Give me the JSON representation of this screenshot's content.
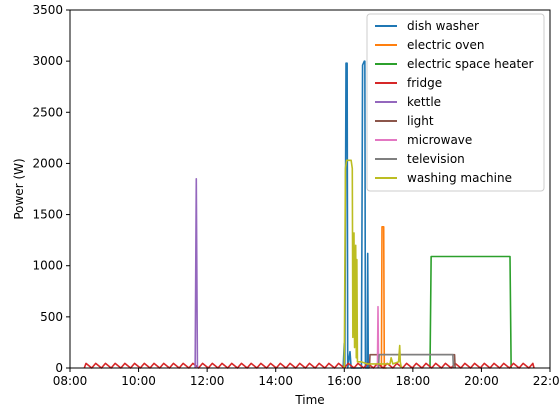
{
  "chart_data": {
    "type": "line",
    "xlabel": "Time",
    "ylabel": "Power (W)",
    "x_axis_unit": "time of day",
    "xlim": [
      "08:00",
      "22:00"
    ],
    "ylim": [
      0,
      3500
    ],
    "xticks": [
      "08:00",
      "10:00",
      "12:00",
      "14:00",
      "16:00",
      "18:00",
      "20:00",
      "22:00"
    ],
    "yticks": [
      0,
      500,
      1000,
      1500,
      2000,
      2500,
      3000,
      3500
    ],
    "grid": false,
    "legend_position": "top-right",
    "series": [
      {
        "name": "dish washer",
        "color": "#1f77b4",
        "points": [
          [
            "15:58",
            0
          ],
          [
            "16:00",
            240
          ],
          [
            "16:01",
            0
          ],
          [
            "16:03",
            2980
          ],
          [
            "16:05",
            2980
          ],
          [
            "16:06",
            0
          ],
          [
            "16:10",
            160
          ],
          [
            "16:12",
            0
          ],
          [
            "16:30",
            0
          ],
          [
            "16:32",
            2960
          ],
          [
            "16:35",
            3000
          ],
          [
            "16:36",
            3000
          ],
          [
            "16:37",
            0
          ],
          [
            "16:40",
            0
          ],
          [
            "16:41",
            1120
          ],
          [
            "16:42",
            0
          ],
          [
            "16:44",
            0
          ]
        ]
      },
      {
        "name": "electric oven",
        "color": "#ff7f0e",
        "points": [
          [
            "17:05",
            0
          ],
          [
            "17:06",
            1380
          ],
          [
            "17:09",
            1380
          ],
          [
            "17:10",
            0
          ],
          [
            "17:14",
            0
          ]
        ]
      },
      {
        "name": "electric space heater",
        "color": "#2ca02c",
        "points": [
          [
            "18:30",
            0
          ],
          [
            "18:32",
            1090
          ],
          [
            "20:50",
            1090
          ],
          [
            "20:52",
            0
          ]
        ]
      },
      {
        "name": "fridge",
        "color": "#d62728",
        "points": [
          [
            "08:25",
            0
          ],
          [
            "08:28",
            45
          ],
          [
            "08:38",
            0
          ],
          [
            "08:45",
            45
          ],
          [
            "08:55",
            0
          ],
          [
            "09:02",
            45
          ],
          [
            "09:12",
            0
          ],
          [
            "09:19",
            45
          ],
          [
            "09:29",
            0
          ],
          [
            "09:36",
            45
          ],
          [
            "09:46",
            0
          ],
          [
            "09:53",
            45
          ],
          [
            "10:03",
            0
          ],
          [
            "10:10",
            45
          ],
          [
            "10:20",
            0
          ],
          [
            "10:27",
            45
          ],
          [
            "10:37",
            0
          ],
          [
            "10:44",
            45
          ],
          [
            "10:54",
            0
          ],
          [
            "11:01",
            45
          ],
          [
            "11:11",
            0
          ],
          [
            "11:18",
            45
          ],
          [
            "11:28",
            0
          ],
          [
            "11:35",
            45
          ],
          [
            "11:45",
            0
          ],
          [
            "11:52",
            45
          ],
          [
            "12:02",
            0
          ],
          [
            "12:09",
            45
          ],
          [
            "12:19",
            0
          ],
          [
            "12:26",
            45
          ],
          [
            "12:36",
            0
          ],
          [
            "12:43",
            45
          ],
          [
            "12:53",
            0
          ],
          [
            "13:00",
            45
          ],
          [
            "13:10",
            0
          ],
          [
            "13:17",
            45
          ],
          [
            "13:27",
            0
          ],
          [
            "13:34",
            45
          ],
          [
            "13:44",
            0
          ],
          [
            "13:51",
            45
          ],
          [
            "14:01",
            0
          ],
          [
            "14:08",
            45
          ],
          [
            "14:18",
            0
          ],
          [
            "14:25",
            45
          ],
          [
            "14:35",
            0
          ],
          [
            "14:42",
            45
          ],
          [
            "14:52",
            0
          ],
          [
            "14:59",
            45
          ],
          [
            "15:09",
            0
          ],
          [
            "15:16",
            45
          ],
          [
            "15:26",
            0
          ],
          [
            "15:33",
            45
          ],
          [
            "15:43",
            0
          ],
          [
            "15:50",
            45
          ],
          [
            "16:00",
            0
          ],
          [
            "16:07",
            45
          ],
          [
            "16:17",
            0
          ],
          [
            "16:24",
            45
          ],
          [
            "16:34",
            0
          ],
          [
            "16:41",
            45
          ],
          [
            "16:51",
            0
          ],
          [
            "16:58",
            45
          ],
          [
            "17:08",
            0
          ],
          [
            "17:15",
            45
          ],
          [
            "17:25",
            0
          ],
          [
            "17:32",
            45
          ],
          [
            "17:42",
            0
          ],
          [
            "17:49",
            45
          ],
          [
            "17:59",
            0
          ],
          [
            "18:06",
            45
          ],
          [
            "18:16",
            0
          ],
          [
            "18:23",
            45
          ],
          [
            "18:33",
            0
          ],
          [
            "18:40",
            45
          ],
          [
            "18:50",
            0
          ],
          [
            "18:57",
            45
          ],
          [
            "19:07",
            0
          ],
          [
            "19:14",
            45
          ],
          [
            "19:24",
            0
          ],
          [
            "19:31",
            45
          ],
          [
            "19:41",
            0
          ],
          [
            "19:48",
            45
          ],
          [
            "19:58",
            0
          ],
          [
            "20:05",
            45
          ],
          [
            "20:15",
            0
          ],
          [
            "20:22",
            45
          ],
          [
            "20:32",
            0
          ],
          [
            "20:39",
            45
          ],
          [
            "20:49",
            0
          ],
          [
            "20:56",
            45
          ],
          [
            "21:06",
            0
          ],
          [
            "21:13",
            45
          ],
          [
            "21:23",
            0
          ],
          [
            "21:30",
            45
          ],
          [
            "21:32",
            0
          ]
        ]
      },
      {
        "name": "kettle",
        "color": "#9467bd",
        "points": [
          [
            "11:39",
            0
          ],
          [
            "11:41",
            1850
          ],
          [
            "11:43",
            0
          ]
        ]
      },
      {
        "name": "light",
        "color": "#8c564b",
        "points": [
          [
            "16:44",
            0
          ],
          [
            "16:45",
            130
          ],
          [
            "19:13",
            130
          ],
          [
            "19:14",
            0
          ]
        ]
      },
      {
        "name": "microwave",
        "color": "#e377c2",
        "points": [
          [
            "16:58",
            0
          ],
          [
            "16:59",
            600
          ],
          [
            "17:00",
            0
          ]
        ]
      },
      {
        "name": "television",
        "color": "#7f7f7f",
        "points": [
          [
            "17:00",
            0
          ],
          [
            "17:01",
            130
          ],
          [
            "19:10",
            130
          ],
          [
            "19:11",
            0
          ]
        ]
      },
      {
        "name": "washing machine",
        "color": "#bcbd22",
        "points": [
          [
            "16:00",
            0
          ],
          [
            "16:02",
            1950
          ],
          [
            "16:04",
            2030
          ],
          [
            "16:12",
            2030
          ],
          [
            "16:14",
            1950
          ],
          [
            "16:15",
            300
          ],
          [
            "16:17",
            1320
          ],
          [
            "16:18",
            200
          ],
          [
            "16:20",
            1200
          ],
          [
            "16:21",
            100
          ],
          [
            "16:22",
            1060
          ],
          [
            "16:23",
            60
          ],
          [
            "16:30",
            60
          ],
          [
            "16:40",
            40
          ],
          [
            "17:20",
            40
          ],
          [
            "17:22",
            100
          ],
          [
            "17:25",
            40
          ],
          [
            "17:35",
            60
          ],
          [
            "17:37",
            220
          ],
          [
            "17:38",
            60
          ],
          [
            "17:40",
            0
          ]
        ]
      }
    ]
  }
}
